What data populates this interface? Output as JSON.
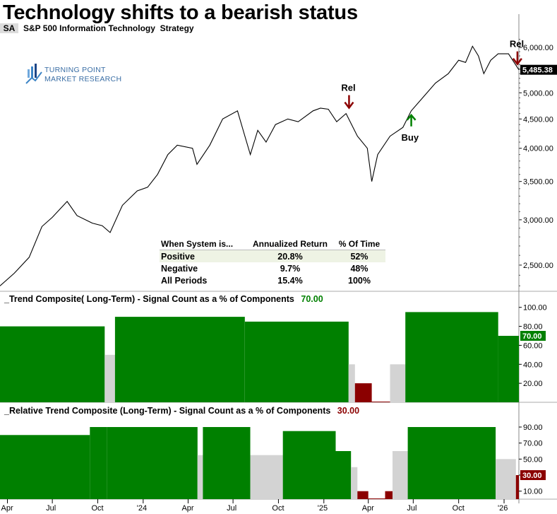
{
  "title": "Technology shifts to a bearish status",
  "symbol": "SA",
  "strategy": "S&P 500 Information Technology  Strategy",
  "logo": {
    "line1": "TURNING POINT",
    "line2": "MARKET RESEARCH"
  },
  "stats_table": {
    "headers": [
      "When System is...",
      "Annualized Return",
      "% Of Time"
    ],
    "rows": [
      {
        "label": "Positive",
        "return": "20.8%",
        "time": "52%"
      },
      {
        "label": "Negative",
        "return": "9.7%",
        "time": "48%"
      },
      {
        "label": "All Periods",
        "return": "15.4%",
        "time": "100%"
      }
    ]
  },
  "panel2": {
    "label": "_Trend Composite( Long-Term) - Signal Count as a % of Components",
    "value": "70.00"
  },
  "panel3": {
    "label": "_Relative Trend Composite (Long-Term) - Signal Count as a % of Components",
    "value": "30.00"
  },
  "colors": {
    "positive": "#008000",
    "negative": "#8b0000",
    "neutral": "#d3d3d3",
    "price": "#000000"
  },
  "chart_data": [
    {
      "type": "line",
      "title": "S&P 500 Information Technology",
      "y_scale": "log",
      "ylim": [
        2250,
        6300
      ],
      "y_ticks": [
        "6,000.00",
        "5,500.00",
        "5,000.00",
        "4,500.00",
        "4,000.00",
        "3,500.00",
        "3,000.00",
        "2,500.00"
      ],
      "last_value": "5,485.38",
      "x_ticks": [
        "Apr",
        "Jul",
        "Oct",
        "'24",
        "Apr",
        "Jul",
        "Oct",
        "'25",
        "Apr",
        "Jul",
        "Oct",
        "'26"
      ],
      "x_tick_dates": [
        "2023-04-01",
        "2023-07-01",
        "2023-10-01",
        "2024-01-01",
        "2024-04-01",
        "2024-07-01",
        "2024-10-01",
        "2025-01-01",
        "2025-04-01",
        "2025-07-01",
        "2025-10-01",
        "2026-01-01"
      ],
      "x_range": [
        "2023-03-17",
        "2026-01-31"
      ],
      "series": [
        {
          "x": [
            "2023-03-17",
            "2023-04-15",
            "2023-05-15",
            "2023-06-10",
            "2023-07-01",
            "2023-07-31",
            "2023-08-20",
            "2023-09-20",
            "2023-10-10",
            "2023-10-26",
            "2023-11-20",
            "2023-12-20",
            "2024-01-10",
            "2024-01-30",
            "2024-02-20",
            "2024-03-10",
            "2024-04-10",
            "2024-04-19",
            "2024-05-15",
            "2024-06-10",
            "2024-07-10",
            "2024-07-25",
            "2024-08-05",
            "2024-08-20",
            "2024-09-06",
            "2024-09-25",
            "2024-10-20",
            "2024-11-10",
            "2024-12-10",
            "2024-12-25",
            "2025-01-10",
            "2025-01-27",
            "2025-02-15",
            "2025-03-10",
            "2025-03-30",
            "2025-04-08",
            "2025-04-20",
            "2025-05-15",
            "2025-06-10",
            "2025-06-27",
            "2025-07-20",
            "2025-08-15",
            "2025-09-10",
            "2025-10-01",
            "2025-10-15",
            "2025-10-29",
            "2025-11-10",
            "2025-11-21",
            "2025-12-05",
            "2025-12-20",
            "2026-01-10",
            "2026-01-31"
          ],
          "y": [
            2300,
            2420,
            2580,
            2920,
            3030,
            3230,
            3050,
            2960,
            2930,
            2850,
            3180,
            3370,
            3420,
            3600,
            3900,
            4050,
            4000,
            3750,
            4050,
            4500,
            4650,
            4200,
            3900,
            4300,
            4100,
            4400,
            4500,
            4450,
            4650,
            4700,
            4680,
            4450,
            4600,
            4200,
            4000,
            3500,
            3900,
            4200,
            4350,
            4650,
            4900,
            5200,
            5400,
            5700,
            5650,
            6030,
            5800,
            5400,
            5700,
            5850,
            5850,
            5485
          ]
        }
      ],
      "annotations": [
        {
          "label": "Rel",
          "date": "2025-02-21",
          "type": "sell"
        },
        {
          "label": "Buy",
          "date": "2025-06-27",
          "type": "buy"
        },
        {
          "label": "Rel",
          "date": "2026-01-28",
          "type": "sell"
        }
      ]
    },
    {
      "type": "bar",
      "title": "_Trend Composite( Long-Term) - Signal Count as a % of Components",
      "ylim": [
        0,
        105
      ],
      "y_ticks": [
        100,
        80,
        60,
        40,
        20
      ],
      "last_value": 70,
      "segments": [
        {
          "start": "2023-03-17",
          "end": "2023-10-15",
          "level": 80,
          "state": "positive"
        },
        {
          "start": "2023-10-15",
          "end": "2023-11-05",
          "level": 50,
          "state": "neutral"
        },
        {
          "start": "2023-11-05",
          "end": "2024-07-25",
          "level": 90,
          "state": "positive"
        },
        {
          "start": "2024-07-25",
          "end": "2025-02-20",
          "level": 85,
          "state": "positive"
        },
        {
          "start": "2025-02-20",
          "end": "2025-03-05",
          "level": 40,
          "state": "neutral"
        },
        {
          "start": "2025-03-05",
          "end": "2025-04-08",
          "level": 20,
          "state": "negative"
        },
        {
          "start": "2025-04-08",
          "end": "2025-05-15",
          "level": 0,
          "state": "negative"
        },
        {
          "start": "2025-05-15",
          "end": "2025-06-15",
          "level": 40,
          "state": "neutral"
        },
        {
          "start": "2025-06-15",
          "end": "2025-12-20",
          "level": 95,
          "state": "positive"
        },
        {
          "start": "2025-12-20",
          "end": "2026-01-31",
          "level": 70,
          "state": "positive"
        }
      ]
    },
    {
      "type": "bar",
      "title": "_Relative Trend Composite (Long-Term) - Signal Count as a % of Components",
      "ylim": [
        0,
        105
      ],
      "y_ticks": [
        90,
        70,
        50,
        30,
        10
      ],
      "last_value": 30,
      "segments": [
        {
          "start": "2023-03-17",
          "end": "2023-09-15",
          "level": 80,
          "state": "positive"
        },
        {
          "start": "2023-09-15",
          "end": "2023-10-20",
          "level": 90,
          "state": "positive"
        },
        {
          "start": "2023-10-20",
          "end": "2024-04-20",
          "level": 90,
          "state": "positive"
        },
        {
          "start": "2024-04-20",
          "end": "2024-05-01",
          "level": 55,
          "state": "neutral"
        },
        {
          "start": "2024-05-01",
          "end": "2024-08-05",
          "level": 90,
          "state": "positive"
        },
        {
          "start": "2024-08-05",
          "end": "2024-10-10",
          "level": 55,
          "state": "neutral"
        },
        {
          "start": "2024-10-10",
          "end": "2025-01-25",
          "level": 85,
          "state": "positive"
        },
        {
          "start": "2025-01-25",
          "end": "2025-02-25",
          "level": 60,
          "state": "positive"
        },
        {
          "start": "2025-02-25",
          "end": "2025-03-10",
          "level": 40,
          "state": "neutral"
        },
        {
          "start": "2025-03-10",
          "end": "2025-04-01",
          "level": 10,
          "state": "negative"
        },
        {
          "start": "2025-04-01",
          "end": "2025-05-05",
          "level": 0,
          "state": "negative"
        },
        {
          "start": "2025-05-05",
          "end": "2025-05-20",
          "level": 10,
          "state": "negative"
        },
        {
          "start": "2025-05-20",
          "end": "2025-06-20",
          "level": 60,
          "state": "neutral"
        },
        {
          "start": "2025-06-20",
          "end": "2025-12-15",
          "level": 90,
          "state": "positive"
        },
        {
          "start": "2025-12-15",
          "end": "2026-01-25",
          "level": 50,
          "state": "neutral"
        },
        {
          "start": "2026-01-25",
          "end": "2026-01-31",
          "level": 30,
          "state": "negative"
        }
      ]
    }
  ]
}
